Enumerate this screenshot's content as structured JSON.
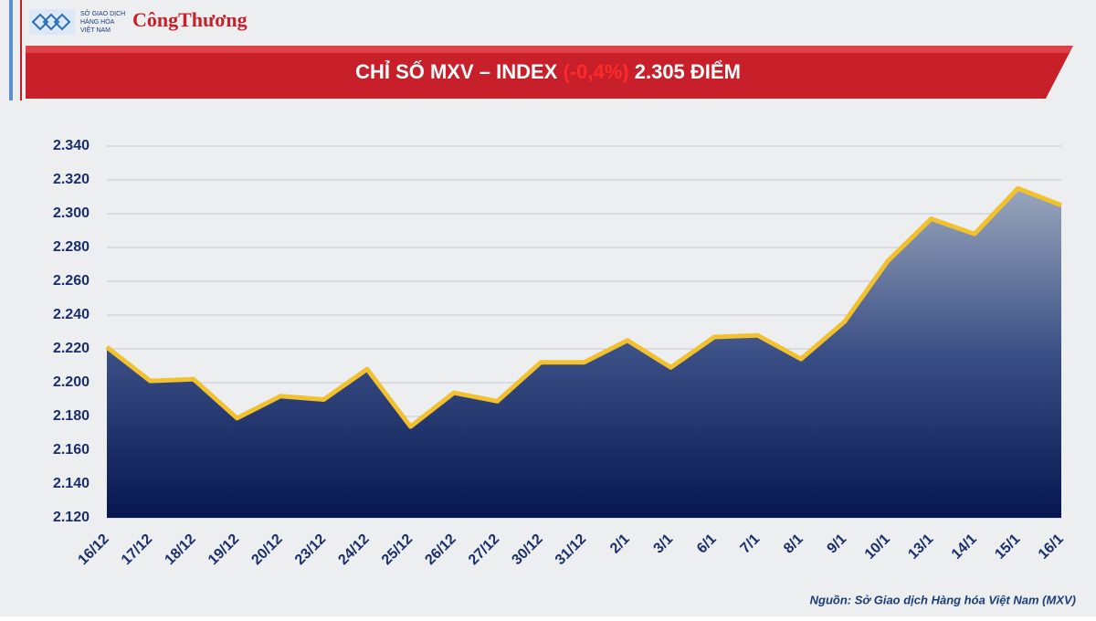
{
  "header": {
    "logo_text_1": "SỞ GIAO DỊCH",
    "logo_text_2": "HÀNG HÓA",
    "logo_text_3": "VIỆT NAM",
    "brand": "CôngThương"
  },
  "chart_data": {
    "type": "area",
    "title": "CHỈ SỐ MXV – INDEX",
    "title_change": "(-0,4%)",
    "title_value": "2.305 ĐIỂM",
    "categories": [
      "16/12",
      "17/12",
      "18/12",
      "19/12",
      "20/12",
      "23/12",
      "24/12",
      "25/12",
      "26/12",
      "27/12",
      "30/12",
      "31/12",
      "2/1",
      "3/1",
      "6/1",
      "7/1",
      "8/1",
      "9/1",
      "10/1",
      "13/1",
      "14/1",
      "15/1",
      "16/1"
    ],
    "values": [
      2221,
      2201,
      2202,
      2179,
      2192,
      2190,
      2208,
      2174,
      2194,
      2189,
      2212,
      2212,
      2225,
      2209,
      2227,
      2228,
      2214,
      2236,
      2272,
      2297,
      2288,
      2315,
      2305
    ],
    "color": "#f2c12e",
    "fill_color": "#0d1f5c",
    "ylim": [
      2120,
      2340
    ],
    "yticks": [
      {
        "value": 2120,
        "label": "2.120"
      },
      {
        "value": 2140,
        "label": "2.140"
      },
      {
        "value": 2160,
        "label": "2.160"
      },
      {
        "value": 2180,
        "label": "2.180"
      },
      {
        "value": 2200,
        "label": "2.200"
      },
      {
        "value": 2220,
        "label": "2.220"
      },
      {
        "value": 2240,
        "label": "2.240"
      },
      {
        "value": 2260,
        "label": "2.260"
      },
      {
        "value": 2280,
        "label": "2.280"
      },
      {
        "value": 2300,
        "label": "2.300"
      },
      {
        "value": 2320,
        "label": "2.320"
      },
      {
        "value": 2340,
        "label": "2.340"
      }
    ],
    "grid": true,
    "source": "Nguồn: Sở Giao dịch Hàng hóa Việt Nam (MXV)"
  }
}
